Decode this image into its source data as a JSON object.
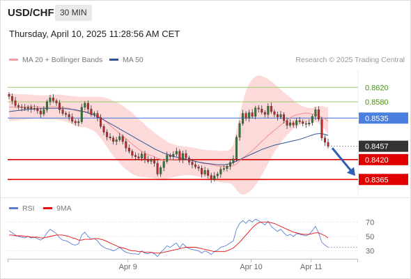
{
  "header": {
    "symbol": "USD/CHF",
    "timeframe": "30 MIN",
    "timestamp": "Thursday, April 10, 2025 11:28:56 AM CET",
    "credit": "Research © 2025 Trading Central"
  },
  "legend": {
    "ma20": {
      "label": "MA 20 + Bollinger Bands",
      "color": "#f4a0a0"
    },
    "ma50": {
      "label": "MA 50",
      "color": "#2f5597"
    },
    "rsi": {
      "label": "RSI",
      "color": "#5b7fd6"
    },
    "ma9": {
      "label": "9MA",
      "color": "#e01010"
    }
  },
  "colors": {
    "up": "#2e7d32",
    "down": "#c62828",
    "resistance_green": "#9ccc65",
    "pivot_blue": "#4a7fe0",
    "support_red": "#e00000",
    "bollinger_fill": "#fbd3d3",
    "current_box": "#333333",
    "arrow": "#2f5fb3"
  },
  "chart_data": [
    {
      "type": "candlestick",
      "title": "USD/CHF 30 MIN",
      "ylim": [
        0.8325,
        0.8665
      ],
      "x_ticks": [
        "Apr 9",
        "Apr 10",
        "Apr 11"
      ],
      "x_tick_index": [
        35,
        74,
        93
      ],
      "levels": [
        {
          "value": 0.862,
          "label": "0.8620",
          "role": "resistance"
        },
        {
          "value": 0.858,
          "label": "0.8580",
          "role": "resistance"
        },
        {
          "value": 0.8535,
          "label": "0.8535",
          "role": "pivot"
        },
        {
          "value": 0.8457,
          "label": "0.8457",
          "role": "last_price"
        },
        {
          "value": 0.842,
          "label": "0.8420",
          "role": "support"
        },
        {
          "value": 0.8365,
          "label": "0.8365",
          "role": "support"
        }
      ],
      "close": [
        0.8595,
        0.8583,
        0.857,
        0.8566,
        0.8564,
        0.8561,
        0.8565,
        0.856,
        0.8562,
        0.8555,
        0.8546,
        0.8558,
        0.858,
        0.8591,
        0.8583,
        0.8577,
        0.8558,
        0.8548,
        0.8545,
        0.8538,
        0.8526,
        0.8522,
        0.8525,
        0.8565,
        0.8576,
        0.856,
        0.8545,
        0.8548,
        0.8536,
        0.8512,
        0.8496,
        0.8483,
        0.848,
        0.847,
        0.8475,
        0.8484,
        0.847,
        0.8452,
        0.8443,
        0.8432,
        0.8428,
        0.8424,
        0.8436,
        0.842,
        0.8415,
        0.842,
        0.841,
        0.838,
        0.8398,
        0.8415,
        0.8432,
        0.8428,
        0.8435,
        0.8443,
        0.842,
        0.8437,
        0.8425,
        0.8413,
        0.8406,
        0.84,
        0.8396,
        0.838,
        0.839,
        0.8376,
        0.8365,
        0.8375,
        0.838,
        0.8393,
        0.8395,
        0.8402,
        0.8412,
        0.8422,
        0.8482,
        0.852,
        0.8548,
        0.8535,
        0.855,
        0.854,
        0.8563,
        0.856,
        0.8551,
        0.8545,
        0.8568,
        0.8553,
        0.8545,
        0.8538,
        0.8545,
        0.8528,
        0.8515,
        0.8522,
        0.8516,
        0.8528,
        0.8525,
        0.852,
        0.8518,
        0.8522,
        0.854,
        0.8558,
        0.8532,
        0.848,
        0.8468,
        0.8457
      ],
      "ma20": [
        0.8565,
        0.8566,
        0.8565,
        0.8564,
        0.8565,
        0.8566,
        0.8566,
        0.8567,
        0.8567,
        0.8566,
        0.8565,
        0.8564,
        0.8565,
        0.8566,
        0.8566,
        0.8566,
        0.8565,
        0.8564,
        0.8563,
        0.8562,
        0.8559,
        0.8556,
        0.8554,
        0.8554,
        0.8554,
        0.8552,
        0.855,
        0.8547,
        0.8543,
        0.8538,
        0.8531,
        0.8523,
        0.8515,
        0.8507,
        0.85,
        0.8492,
        0.8485,
        0.8478,
        0.847,
        0.8463,
        0.8456,
        0.8449,
        0.8443,
        0.8438,
        0.8434,
        0.8431,
        0.8428,
        0.8423,
        0.8421,
        0.842,
        0.842,
        0.842,
        0.842,
        0.8421,
        0.8421,
        0.8422,
        0.8422,
        0.842,
        0.8418,
        0.8415,
        0.8413,
        0.841,
        0.8409,
        0.8408,
        0.8406,
        0.8404,
        0.8402,
        0.8402,
        0.8401,
        0.8401,
        0.8401,
        0.8403,
        0.8408,
        0.8416,
        0.8425,
        0.8431,
        0.8438,
        0.8445,
        0.8453,
        0.8462,
        0.847,
        0.8478,
        0.8487,
        0.8494,
        0.8501,
        0.8508,
        0.8516,
        0.8523,
        0.8529,
        0.8536,
        0.8541,
        0.8544,
        0.8546,
        0.8548,
        0.8549,
        0.8548,
        0.8546,
        0.8545,
        0.8541,
        0.8537,
        0.8533,
        0.8526
      ],
      "bb_upper": [
        0.8604,
        0.8603,
        0.8602,
        0.8601,
        0.8601,
        0.8601,
        0.86,
        0.86,
        0.8599,
        0.8599,
        0.8598,
        0.8598,
        0.8598,
        0.8599,
        0.86,
        0.86,
        0.86,
        0.8599,
        0.8598,
        0.8597,
        0.8596,
        0.8595,
        0.8594,
        0.8594,
        0.8594,
        0.8594,
        0.8594,
        0.8594,
        0.8594,
        0.8594,
        0.8592,
        0.859,
        0.8587,
        0.8583,
        0.8579,
        0.8575,
        0.857,
        0.8563,
        0.8556,
        0.8549,
        0.8541,
        0.8533,
        0.8525,
        0.8517,
        0.8509,
        0.8502,
        0.8495,
        0.8488,
        0.8482,
        0.8476,
        0.847,
        0.8465,
        0.8462,
        0.846,
        0.8458,
        0.8457,
        0.8456,
        0.8455,
        0.8454,
        0.8452,
        0.845,
        0.8448,
        0.8447,
        0.8446,
        0.8446,
        0.8446,
        0.8445,
        0.8444,
        0.8444,
        0.8445,
        0.8448,
        0.8462,
        0.85,
        0.8545,
        0.858,
        0.861,
        0.863,
        0.8643,
        0.865,
        0.8653,
        0.8652,
        0.8648,
        0.8643,
        0.8637,
        0.863,
        0.8622,
        0.8614,
        0.8606,
        0.8599,
        0.8592,
        0.8585,
        0.8578,
        0.8572,
        0.8568,
        0.8565,
        0.8563,
        0.8563,
        0.8566,
        0.8568,
        0.8568,
        0.8566,
        0.8564
      ],
      "bb_lower": [
        0.8526,
        0.8527,
        0.8528,
        0.8529,
        0.853,
        0.8531,
        0.8532,
        0.8533,
        0.8534,
        0.8534,
        0.8533,
        0.8531,
        0.8531,
        0.8531,
        0.8531,
        0.853,
        0.8529,
        0.8527,
        0.8525,
        0.8522,
        0.8518,
        0.8514,
        0.8511,
        0.851,
        0.851,
        0.8506,
        0.8503,
        0.8498,
        0.849,
        0.848,
        0.8468,
        0.8455,
        0.8442,
        0.843,
        0.842,
        0.841,
        0.8401,
        0.8393,
        0.8386,
        0.838,
        0.8376,
        0.8373,
        0.8372,
        0.8371,
        0.837,
        0.8369,
        0.8368,
        0.8367,
        0.8366,
        0.8366,
        0.8367,
        0.8369,
        0.8371,
        0.8373,
        0.8375,
        0.8376,
        0.8377,
        0.8377,
        0.8376,
        0.8375,
        0.8373,
        0.8371,
        0.8369,
        0.8367,
        0.8365,
        0.8362,
        0.8359,
        0.8357,
        0.8356,
        0.8356,
        0.8354,
        0.8348,
        0.8336,
        0.8326,
        0.8323,
        0.8325,
        0.833,
        0.8338,
        0.8349,
        0.8362,
        0.8377,
        0.8393,
        0.8409,
        0.8425,
        0.844,
        0.8454,
        0.8467,
        0.8478,
        0.8488,
        0.8497,
        0.8505,
        0.8511,
        0.8516,
        0.852,
        0.8523,
        0.8525,
        0.8526,
        0.8525,
        0.852,
        0.8512,
        0.8503,
        0.8491
      ],
      "ma50": [
        0.8553,
        0.8554,
        0.8555,
        0.8556,
        0.8557,
        0.8558,
        0.8559,
        0.856,
        0.856,
        0.8561,
        0.8561,
        0.8561,
        0.8562,
        0.8562,
        0.8562,
        0.8562,
        0.8562,
        0.8561,
        0.8561,
        0.856,
        0.8559,
        0.8558,
        0.8556,
        0.8554,
        0.8552,
        0.8549,
        0.8546,
        0.8543,
        0.8539,
        0.8535,
        0.853,
        0.8525,
        0.852,
        0.8515,
        0.851,
        0.8505,
        0.85,
        0.8495,
        0.849,
        0.8485,
        0.848,
        0.8475,
        0.847,
        0.8465,
        0.846,
        0.8455,
        0.845,
        0.8446,
        0.8442,
        0.8438,
        0.8435,
        0.8432,
        0.8429,
        0.8427,
        0.8425,
        0.8423,
        0.8421,
        0.8419,
        0.8417,
        0.8415,
        0.8413,
        0.8412,
        0.841,
        0.8409,
        0.8408,
        0.8407,
        0.8406,
        0.8406,
        0.8406,
        0.8407,
        0.8409,
        0.8412,
        0.8416,
        0.842,
        0.8424,
        0.8428,
        0.8432,
        0.8436,
        0.844,
        0.8444,
        0.8448,
        0.8451,
        0.8454,
        0.8457,
        0.846,
        0.8462,
        0.8464,
        0.8466,
        0.8468,
        0.847,
        0.8472,
        0.8474,
        0.8476,
        0.8479,
        0.8482,
        0.8485,
        0.8488,
        0.8491,
        0.8492,
        0.8492,
        0.849,
        0.8487
      ],
      "forecast_arrow": {
        "from": 0.8452,
        "to": 0.8375
      }
    },
    {
      "type": "line",
      "title": "RSI",
      "ylim": [
        20,
        80
      ],
      "y_ticks": [
        70,
        50,
        30
      ],
      "series": [
        {
          "name": "RSI",
          "values": [
            58,
            55,
            52,
            50,
            49,
            48,
            50,
            48,
            49,
            47,
            45,
            48,
            55,
            60,
            57,
            54,
            48,
            45,
            44,
            42,
            39,
            38,
            40,
            52,
            56,
            50,
            46,
            47,
            44,
            38,
            35,
            33,
            32,
            30,
            32,
            35,
            31,
            28,
            27,
            26,
            26,
            25,
            30,
            27,
            26,
            28,
            26,
            22,
            28,
            32,
            37,
            35,
            38,
            41,
            34,
            40,
            36,
            33,
            32,
            31,
            30,
            27,
            30,
            28,
            25,
            29,
            31,
            35,
            36,
            38,
            41,
            44,
            60,
            68,
            72,
            68,
            73,
            70,
            74,
            72,
            69,
            66,
            71,
            64,
            60,
            57,
            60,
            55,
            51,
            53,
            50,
            54,
            53,
            52,
            51,
            53,
            58,
            64,
            55,
            42,
            38,
            35
          ]
        },
        {
          "name": "9MA",
          "values": [
            52,
            52,
            51,
            51,
            51,
            50,
            50,
            49,
            49,
            49,
            48,
            48,
            49,
            50,
            51,
            52,
            52,
            52,
            51,
            50,
            48,
            47,
            45,
            45,
            46,
            46,
            46,
            47,
            47,
            46,
            45,
            43,
            41,
            39,
            37,
            35,
            34,
            33,
            31,
            30,
            30,
            29,
            29,
            28,
            28,
            28,
            27,
            27,
            27,
            28,
            29,
            30,
            31,
            32,
            33,
            34,
            35,
            35,
            35,
            35,
            34,
            33,
            32,
            31,
            30,
            29,
            29,
            29,
            29,
            30,
            32,
            34,
            38,
            42,
            47,
            52,
            57,
            62,
            66,
            69,
            70,
            70,
            70,
            69,
            68,
            66,
            64,
            62,
            60,
            58,
            56,
            55,
            54,
            53,
            53,
            53,
            54,
            55,
            55,
            53,
            51,
            48
          ]
        }
      ]
    }
  ]
}
